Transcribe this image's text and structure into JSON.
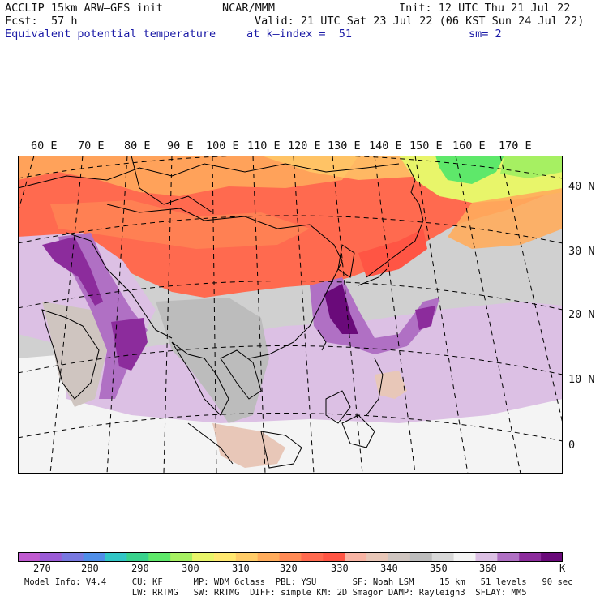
{
  "header": {
    "model": "ACCLIP 15km ARW–GFS init",
    "center": "NCAR/MMM",
    "init": "Init: 12 UTC Thu 21 Jul 22",
    "fcst_label": "Fcst:",
    "fcst_value": "57 h",
    "valid": "Valid: 21 UTC Sat 23 Jul 22 (06 KST Sun 24 Jul 22)",
    "field": "Equivalent potential temperature",
    "level": "at k–index =  51",
    "smooth": "sm= 2"
  },
  "map": {
    "lon_labels": [
      "60 E",
      "70 E",
      "80 E",
      "90 E",
      "100 E",
      "110 E",
      "120 E",
      "130 E",
      "140 E",
      "150 E",
      "160 E",
      "170 E"
    ],
    "lat_labels": [
      "40 N",
      "30 N",
      "20 N",
      "10 N",
      "0"
    ]
  },
  "colorbar": {
    "colors": [
      "#c05ad0",
      "#9b5bd6",
      "#7878e0",
      "#4f8ee8",
      "#31c6c6",
      "#38d28c",
      "#5ee86a",
      "#a6f062",
      "#e8f56a",
      "#ffe870",
      "#ffcc68",
      "#ffac5c",
      "#ff8a55",
      "#ff6a4f",
      "#ff5544",
      "#f8b4a4",
      "#e8c7b8",
      "#cfc5c0",
      "#bcbcbc",
      "#d8d8d8",
      "#f4f4f4",
      "#dcc0e4",
      "#b070c4",
      "#8c2c9c",
      "#6a0a7a"
    ],
    "ticks": [
      "270",
      "280",
      "290",
      "300",
      "310",
      "320",
      "330",
      "340",
      "350",
      "360"
    ],
    "unit": "K"
  },
  "footer": {
    "line1": "Model Info: V4.4     CU: KF      MP: WDM 6class  PBL: YSU       SF: Noah LSM     15 km   51 levels   90 sec",
    "line2": "                     LW: RRTMG   SW: RRTMG  DIFF: simple KM: 2D Smagor DAMP: Rayleigh3  SFLAY: MM5"
  }
}
